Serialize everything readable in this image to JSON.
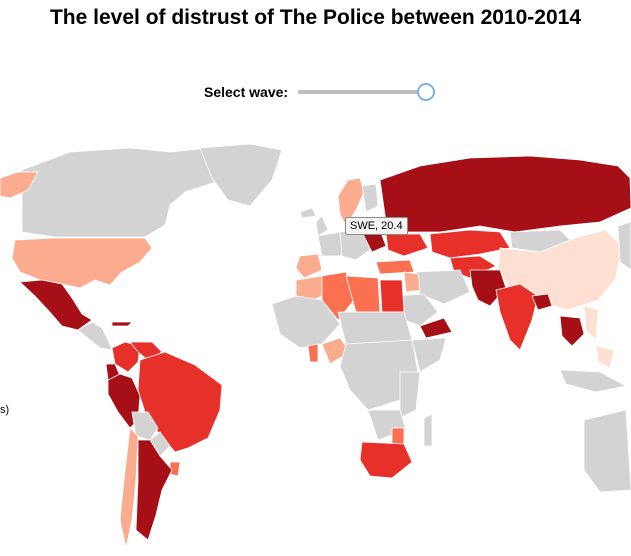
{
  "title": "The level of distrust of The Police between 2010-2014",
  "wave_control": {
    "label": "Select wave:",
    "slider_value": 1.0
  },
  "tooltip": {
    "text": "SWE, 20.4"
  },
  "legend_fragment": "s)",
  "colors": {
    "no_data": "#d3d3d3",
    "very_light": "#fde0d2",
    "light": "#fcac8e",
    "medium_light": "#fb7050",
    "medium": "#e8302a",
    "dark": "#a50f15"
  }
}
